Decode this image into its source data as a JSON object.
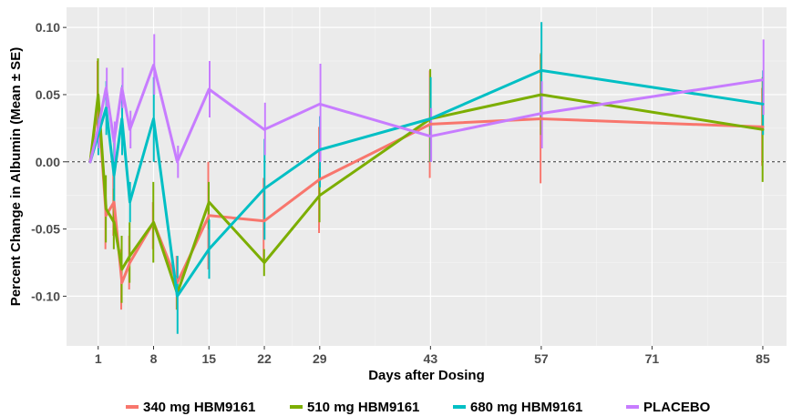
{
  "chart_data": {
    "type": "line",
    "title": "",
    "xlabel": "Days after Dosing",
    "ylabel": "Percent Change in Albumin (Mean ± SE)",
    "xlim": [
      -3,
      88
    ],
    "ylim": [
      -0.137,
      0.115
    ],
    "x_ticks": [
      1,
      8,
      15,
      22,
      29,
      43,
      57,
      71,
      85
    ],
    "x_tick_labels": [
      "1",
      "8",
      "15",
      "22",
      "29",
      "43",
      "57",
      "71",
      "85"
    ],
    "y_ticks": [
      -0.1,
      -0.05,
      0.0,
      0.05,
      0.1
    ],
    "y_tick_labels": [
      "-0.10",
      "-0.05",
      "0.00",
      "0.05",
      "0.10"
    ],
    "reference_line": 0,
    "grid": true,
    "legend_position": "bottom",
    "series": [
      {
        "name": "340 mg HBM9161",
        "color": "#F8766D",
        "points": [
          {
            "x": 0.0,
            "y": 0.0,
            "lo": 0.0,
            "hi": 0.0
          },
          {
            "x": 1.0,
            "y": 0.045,
            "lo": 0.015,
            "hi": 0.075
          },
          {
            "x": 2.0,
            "y": -0.04,
            "lo": -0.065,
            "hi": -0.015
          },
          {
            "x": 3.0,
            "y": -0.03,
            "lo": -0.055,
            "hi": -0.005
          },
          {
            "x": 4.0,
            "y": -0.09,
            "lo": -0.11,
            "hi": -0.065
          },
          {
            "x": 5.0,
            "y": -0.075,
            "lo": -0.095,
            "hi": -0.055
          },
          {
            "x": 8.0,
            "y": -0.045,
            "lo": -0.065,
            "hi": -0.03
          },
          {
            "x": 11.0,
            "y": -0.09,
            "lo": -0.11,
            "hi": -0.07
          },
          {
            "x": 15.0,
            "y": -0.04,
            "lo": -0.08,
            "hi": 0.0
          },
          {
            "x": 22.0,
            "y": -0.044,
            "lo": -0.075,
            "hi": -0.012
          },
          {
            "x": 29.0,
            "y": -0.013,
            "lo": -0.053,
            "hi": 0.026
          },
          {
            "x": 43.0,
            "y": 0.028,
            "lo": -0.012,
            "hi": 0.068
          },
          {
            "x": 57.0,
            "y": 0.032,
            "lo": -0.016,
            "hi": 0.08
          },
          {
            "x": 85.0,
            "y": 0.026,
            "lo": -0.003,
            "hi": 0.055
          }
        ]
      },
      {
        "name": "510 mg HBM9161",
        "color": "#7CAE00",
        "points": [
          {
            "x": 0.0,
            "y": 0.0,
            "lo": 0.0,
            "hi": 0.0
          },
          {
            "x": 1.0,
            "y": 0.05,
            "lo": 0.025,
            "hi": 0.077
          },
          {
            "x": 2.0,
            "y": -0.035,
            "lo": -0.06,
            "hi": -0.01
          },
          {
            "x": 3.0,
            "y": -0.045,
            "lo": -0.065,
            "hi": -0.02
          },
          {
            "x": 4.0,
            "y": -0.08,
            "lo": -0.105,
            "hi": -0.055
          },
          {
            "x": 5.0,
            "y": -0.07,
            "lo": -0.09,
            "hi": -0.045
          },
          {
            "x": 8.0,
            "y": -0.045,
            "lo": -0.075,
            "hi": -0.015
          },
          {
            "x": 11.0,
            "y": -0.098,
            "lo": -0.11,
            "hi": -0.085
          },
          {
            "x": 15.0,
            "y": -0.03,
            "lo": -0.05,
            "hi": -0.015
          },
          {
            "x": 22.0,
            "y": -0.075,
            "lo": -0.085,
            "hi": -0.065
          },
          {
            "x": 29.0,
            "y": -0.025,
            "lo": -0.045,
            "hi": -0.005
          },
          {
            "x": 43.0,
            "y": 0.032,
            "lo": 0.0,
            "hi": 0.069
          },
          {
            "x": 57.0,
            "y": 0.05,
            "lo": 0.02,
            "hi": 0.081
          },
          {
            "x": 85.0,
            "y": 0.024,
            "lo": -0.015,
            "hi": 0.063
          }
        ]
      },
      {
        "name": "680 mg HBM9161",
        "color": "#00BFC4",
        "points": [
          {
            "x": 0.0,
            "y": 0.0,
            "lo": 0.0,
            "hi": 0.0
          },
          {
            "x": 1.0,
            "y": 0.02,
            "lo": 0.005,
            "hi": 0.035
          },
          {
            "x": 2.0,
            "y": 0.04,
            "lo": 0.02,
            "hi": 0.06
          },
          {
            "x": 3.0,
            "y": -0.01,
            "lo": -0.035,
            "hi": 0.015
          },
          {
            "x": 4.0,
            "y": 0.032,
            "lo": 0.005,
            "hi": 0.057
          },
          {
            "x": 5.0,
            "y": -0.03,
            "lo": -0.045,
            "hi": -0.015
          },
          {
            "x": 8.0,
            "y": 0.032,
            "lo": 0.0,
            "hi": 0.063
          },
          {
            "x": 11.0,
            "y": -0.1,
            "lo": -0.128,
            "hi": -0.07
          },
          {
            "x": 15.0,
            "y": -0.065,
            "lo": -0.087,
            "hi": -0.043
          },
          {
            "x": 22.0,
            "y": -0.02,
            "lo": -0.058,
            "hi": 0.017
          },
          {
            "x": 29.0,
            "y": 0.009,
            "lo": -0.019,
            "hi": 0.034
          },
          {
            "x": 43.0,
            "y": 0.032,
            "lo": 0.0,
            "hi": 0.063
          },
          {
            "x": 57.0,
            "y": 0.068,
            "lo": 0.034,
            "hi": 0.104
          },
          {
            "x": 85.0,
            "y": 0.043,
            "lo": 0.02,
            "hi": 0.068
          }
        ]
      },
      {
        "name": "PLACEBO",
        "color": "#C77CFF",
        "points": [
          {
            "x": 0.0,
            "y": 0.0,
            "lo": 0.0,
            "hi": 0.0
          },
          {
            "x": 1.0,
            "y": 0.025,
            "lo": 0.01,
            "hi": 0.04
          },
          {
            "x": 2.0,
            "y": 0.055,
            "lo": 0.04,
            "hi": 0.07
          },
          {
            "x": 3.0,
            "y": 0.015,
            "lo": 0.0,
            "hi": 0.03
          },
          {
            "x": 4.0,
            "y": 0.055,
            "lo": 0.04,
            "hi": 0.07
          },
          {
            "x": 5.0,
            "y": 0.024,
            "lo": 0.01,
            "hi": 0.038
          },
          {
            "x": 8.0,
            "y": 0.072,
            "lo": 0.05,
            "hi": 0.095
          },
          {
            "x": 11.0,
            "y": 0.0,
            "lo": -0.012,
            "hi": 0.012
          },
          {
            "x": 15.0,
            "y": 0.054,
            "lo": 0.033,
            "hi": 0.075
          },
          {
            "x": 22.0,
            "y": 0.024,
            "lo": 0.005,
            "hi": 0.044
          },
          {
            "x": 29.0,
            "y": 0.043,
            "lo": 0.0,
            "hi": 0.073
          },
          {
            "x": 43.0,
            "y": 0.019,
            "lo": 0.0,
            "hi": 0.04
          },
          {
            "x": 57.0,
            "y": 0.036,
            "lo": 0.01,
            "hi": 0.06
          },
          {
            "x": 85.0,
            "y": 0.061,
            "lo": 0.035,
            "hi": 0.091
          }
        ]
      }
    ]
  }
}
